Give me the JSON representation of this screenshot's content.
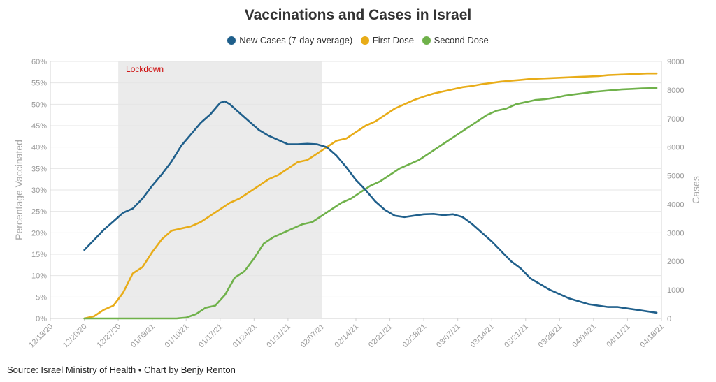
{
  "chart_data": {
    "type": "line",
    "title": "Vaccinations and Cases in Israel",
    "ylabel": "Percentage Vaccinated",
    "y2label": "Cases",
    "ylim": [
      0,
      60
    ],
    "y2lim": [
      0,
      9000
    ],
    "yticks": [
      "0%",
      "5%",
      "10%",
      "15%",
      "20%",
      "25%",
      "30%",
      "35%",
      "40%",
      "45%",
      "50%",
      "55%",
      "60%"
    ],
    "y2ticks": [
      "0",
      "1000",
      "2000",
      "3000",
      "4000",
      "5000",
      "6000",
      "7000",
      "8000",
      "9000"
    ],
    "xlim": [
      "2020-12-13",
      "2021-04-18"
    ],
    "xticks": [
      "12/13/20",
      "12/20/20",
      "12/27/20",
      "01/03/21",
      "01/10/21",
      "01/17/21",
      "01/24/21",
      "01/31/21",
      "02/07/21",
      "02/14/21",
      "02/21/21",
      "02/28/21",
      "03/07/21",
      "03/14/21",
      "03/21/21",
      "03/28/21",
      "04/04/21",
      "04/11/21",
      "04/18/21"
    ],
    "grid": true,
    "legend_position": "top",
    "annotation": {
      "text": "Lockdown",
      "start": "2020-12-27",
      "end": "2021-02-07"
    },
    "series": [
      {
        "name": "New Cases (7-day average)",
        "axis": "right",
        "color": "#1f5f8b",
        "x": [
          "2020-12-20",
          "2020-12-22",
          "2020-12-24",
          "2020-12-26",
          "2020-12-28",
          "2020-12-30",
          "2021-01-01",
          "2021-01-03",
          "2021-01-05",
          "2021-01-07",
          "2021-01-09",
          "2021-01-11",
          "2021-01-13",
          "2021-01-15",
          "2021-01-17",
          "2021-01-18",
          "2021-01-19",
          "2021-01-21",
          "2021-01-23",
          "2021-01-25",
          "2021-01-27",
          "2021-01-29",
          "2021-01-31",
          "2021-02-02",
          "2021-02-04",
          "2021-02-06",
          "2021-02-08",
          "2021-02-10",
          "2021-02-12",
          "2021-02-14",
          "2021-02-16",
          "2021-02-18",
          "2021-02-20",
          "2021-02-22",
          "2021-02-24",
          "2021-02-26",
          "2021-02-28",
          "2021-03-02",
          "2021-03-04",
          "2021-03-06",
          "2021-03-08",
          "2021-03-10",
          "2021-03-12",
          "2021-03-14",
          "2021-03-16",
          "2021-03-18",
          "2021-03-20",
          "2021-03-22",
          "2021-03-24",
          "2021-03-26",
          "2021-03-28",
          "2021-03-30",
          "2021-04-01",
          "2021-04-03",
          "2021-04-05",
          "2021-04-07",
          "2021-04-09",
          "2021-04-11",
          "2021-04-13",
          "2021-04-15",
          "2021-04-17"
        ],
        "values": [
          2400,
          2750,
          3100,
          3400,
          3700,
          3850,
          4200,
          4650,
          5050,
          5500,
          6050,
          6450,
          6850,
          7150,
          7550,
          7600,
          7500,
          7200,
          6900,
          6600,
          6400,
          6250,
          6100,
          6100,
          6120,
          6100,
          6000,
          5700,
          5300,
          4850,
          4500,
          4100,
          3800,
          3600,
          3550,
          3600,
          3650,
          3660,
          3620,
          3650,
          3550,
          3300,
          3000,
          2700,
          2350,
          2000,
          1750,
          1400,
          1200,
          1000,
          850,
          700,
          600,
          500,
          450,
          400,
          400,
          350,
          300,
          250,
          200
        ]
      },
      {
        "name": "First Dose",
        "axis": "left",
        "color": "#e8ac18",
        "x": [
          "2020-12-20",
          "2020-12-22",
          "2020-12-24",
          "2020-12-26",
          "2020-12-28",
          "2020-12-30",
          "2021-01-01",
          "2021-01-03",
          "2021-01-05",
          "2021-01-07",
          "2021-01-09",
          "2021-01-11",
          "2021-01-13",
          "2021-01-15",
          "2021-01-17",
          "2021-01-19",
          "2021-01-21",
          "2021-01-23",
          "2021-01-25",
          "2021-01-27",
          "2021-01-29",
          "2021-01-31",
          "2021-02-02",
          "2021-02-04",
          "2021-02-06",
          "2021-02-08",
          "2021-02-10",
          "2021-02-12",
          "2021-02-14",
          "2021-02-16",
          "2021-02-18",
          "2021-02-20",
          "2021-02-22",
          "2021-02-24",
          "2021-02-26",
          "2021-02-28",
          "2021-03-02",
          "2021-03-04",
          "2021-03-06",
          "2021-03-08",
          "2021-03-10",
          "2021-03-12",
          "2021-03-14",
          "2021-03-16",
          "2021-03-18",
          "2021-03-20",
          "2021-03-22",
          "2021-03-24",
          "2021-03-26",
          "2021-03-28",
          "2021-03-30",
          "2021-04-01",
          "2021-04-03",
          "2021-04-05",
          "2021-04-07",
          "2021-04-09",
          "2021-04-11",
          "2021-04-13",
          "2021-04-15",
          "2021-04-17"
        ],
        "values": [
          0,
          0.5,
          2,
          3,
          6,
          10.5,
          12,
          15.5,
          18.5,
          20.5,
          21,
          21.5,
          22.5,
          24,
          25.5,
          27,
          28,
          29.5,
          31,
          32.5,
          33.5,
          35,
          36.5,
          37,
          38.5,
          40,
          41.5,
          42,
          43.5,
          45,
          46,
          47.5,
          49,
          50,
          51,
          51.8,
          52.5,
          53,
          53.5,
          54,
          54.3,
          54.7,
          55,
          55.3,
          55.5,
          55.7,
          55.9,
          56,
          56.1,
          56.2,
          56.3,
          56.4,
          56.5,
          56.6,
          56.8,
          56.9,
          57,
          57.1,
          57.2,
          57.2
        ]
      },
      {
        "name": "Second Dose",
        "axis": "left",
        "color": "#6fb14a",
        "x": [
          "2020-12-20",
          "2021-01-08",
          "2021-01-10",
          "2021-01-12",
          "2021-01-14",
          "2021-01-16",
          "2021-01-18",
          "2021-01-20",
          "2021-01-22",
          "2021-01-24",
          "2021-01-26",
          "2021-01-28",
          "2021-01-30",
          "2021-02-01",
          "2021-02-03",
          "2021-02-05",
          "2021-02-07",
          "2021-02-09",
          "2021-02-11",
          "2021-02-13",
          "2021-02-15",
          "2021-02-17",
          "2021-02-19",
          "2021-02-21",
          "2021-02-23",
          "2021-02-25",
          "2021-02-27",
          "2021-03-01",
          "2021-03-03",
          "2021-03-05",
          "2021-03-07",
          "2021-03-09",
          "2021-03-11",
          "2021-03-13",
          "2021-03-15",
          "2021-03-17",
          "2021-03-19",
          "2021-03-21",
          "2021-03-23",
          "2021-03-25",
          "2021-03-27",
          "2021-03-29",
          "2021-03-31",
          "2021-04-02",
          "2021-04-04",
          "2021-04-06",
          "2021-04-08",
          "2021-04-10",
          "2021-04-12",
          "2021-04-14",
          "2021-04-17"
        ],
        "values": [
          0,
          0,
          0.2,
          1,
          2.5,
          3,
          5.5,
          9.5,
          11,
          14,
          17.5,
          19,
          20,
          21,
          22,
          22.5,
          24,
          25.5,
          27,
          28,
          29.5,
          31,
          32,
          33.5,
          35,
          36,
          37,
          38.5,
          40,
          41.5,
          43,
          44.5,
          46,
          47.5,
          48.5,
          49,
          50,
          50.5,
          51,
          51.2,
          51.5,
          52,
          52.3,
          52.6,
          52.9,
          53.1,
          53.3,
          53.5,
          53.6,
          53.7,
          53.8
        ]
      }
    ]
  },
  "footer": {
    "source": "Source: Israel Ministry of Health • Chart by Benjy Renton"
  }
}
